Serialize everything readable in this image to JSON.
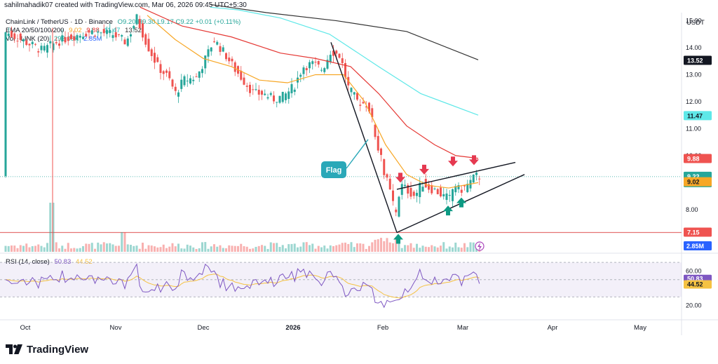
{
  "creator_line": "sahilmahadik07 created with TradingView.com, Mar 06, 2026 09:45 UTC+5:30",
  "legend": {
    "symbol_line": "ChainLink / TetherUS · 1D · Binance",
    "ohlc": "O9.20 H9.30 L9.17 C9.22 +0.01 (+0.11%)",
    "ema_label": "EMA 20/50/100/200",
    "ema_values": [
      "9.02",
      "9.88",
      "11.47",
      "13.52"
    ],
    "vol_label": "Vol · LINK (20)",
    "vol_values": [
      "292.08K",
      "2.85M"
    ]
  },
  "rsi_legend": {
    "label": "RSI (14, close)",
    "value": "50.83",
    "ma": "44.52"
  },
  "currency": "USDT",
  "annotation": "Flag",
  "brand": "TradingView",
  "colors": {
    "up": "#26a69a",
    "down": "#ef5350",
    "ema20": "#f7a726",
    "ema50": "#e53935",
    "ema100": "#5ee8e8",
    "ema200": "#333333",
    "rsi": "#7e57c2",
    "rsi_ma": "#f5c242",
    "support": "#e57373",
    "arrow_red": "#e53950",
    "arrow_green": "#0d9a83",
    "flag": "#2aa8b8"
  },
  "chart_data": {
    "type": "candlestick",
    "ylim": [
      6.8,
      15.3
    ],
    "y_ticks": [
      "8.00",
      "9.00",
      "10.00",
      "11.00",
      "12.00",
      "13.00",
      "14.00",
      "15.00"
    ],
    "x_ticks": [
      "Oct",
      "Nov",
      "Dec",
      "2026",
      "Feb",
      "Mar",
      "Apr",
      "May"
    ],
    "price_labels": [
      {
        "text": "13.52",
        "value": 13.52,
        "bg": "#131722",
        "fg": "#ffffff"
      },
      {
        "text": "11.47",
        "value": 11.47,
        "bg": "#5ee8e8",
        "fg": "#131722"
      },
      {
        "text": "9.88",
        "value": 9.88,
        "bg": "#ef5350",
        "fg": "#ffffff"
      },
      {
        "text": "9.22",
        "value": 9.22,
        "bg": "#26a69a",
        "fg": "#ffffff",
        "sub": "19:44:48"
      },
      {
        "text": "9.02",
        "value": 9.02,
        "bg": "#f7a726",
        "fg": "#131722"
      },
      {
        "text": "7.15",
        "value": 7.15,
        "bg": "#ef5350",
        "fg": "#ffffff"
      }
    ],
    "volume_label": "2.85M",
    "support_level": 7.15,
    "rsi": {
      "ylim": [
        10,
        75
      ],
      "ticks": [
        "60.00",
        "20.00"
      ],
      "band": [
        30,
        70
      ],
      "labels": [
        {
          "text": "50.83",
          "value": 50.83
        },
        {
          "text": "44.52",
          "value": 44.52
        }
      ]
    },
    "pattern": "bullish flag (rising wedge after sharp drop)",
    "arrows_down_count": 4,
    "arrows_up_count": 3
  }
}
